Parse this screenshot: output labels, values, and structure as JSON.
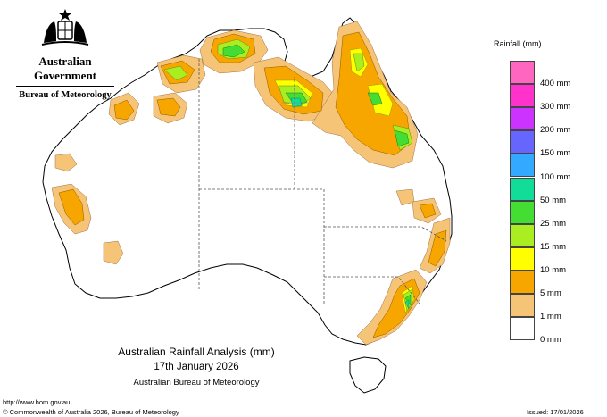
{
  "header": {
    "government": "Australian Government",
    "agency": "Bureau of Meteorology"
  },
  "legend": {
    "title": "Rainfall (mm)",
    "classes": [
      {
        "label": "",
        "color": "#ff66bf"
      },
      {
        "label": "400 mm",
        "color": "#ff33cc"
      },
      {
        "label": "300 mm",
        "color": "#cc33ff"
      },
      {
        "label": "200 mm",
        "color": "#6666ff"
      },
      {
        "label": "150 mm",
        "color": "#33aaff"
      },
      {
        "label": "100 mm",
        "color": "#11dd99"
      },
      {
        "label": "50 mm",
        "color": "#44dd33"
      },
      {
        "label": "25 mm",
        "color": "#aaee22"
      },
      {
        "label": "15 mm",
        "color": "#ffff00"
      },
      {
        "label": "10 mm",
        "color": "#f7a600"
      },
      {
        "label": "5 mm",
        "color": "#f6c476"
      },
      {
        "label": "1 mm",
        "color": "#ffffff"
      },
      {
        "label": "0 mm",
        "color": ""
      }
    ]
  },
  "title": {
    "line1": "Australian Rainfall Analysis (mm)",
    "line2": "17th January 2026",
    "line3": "Australian Bureau of Meteorology"
  },
  "footer": {
    "url": "http://www.bom.gov.au",
    "copyright": "© Commonwealth of Australia 2026, Bureau of Meteorology",
    "issued": "Issued: 17/01/2026"
  }
}
